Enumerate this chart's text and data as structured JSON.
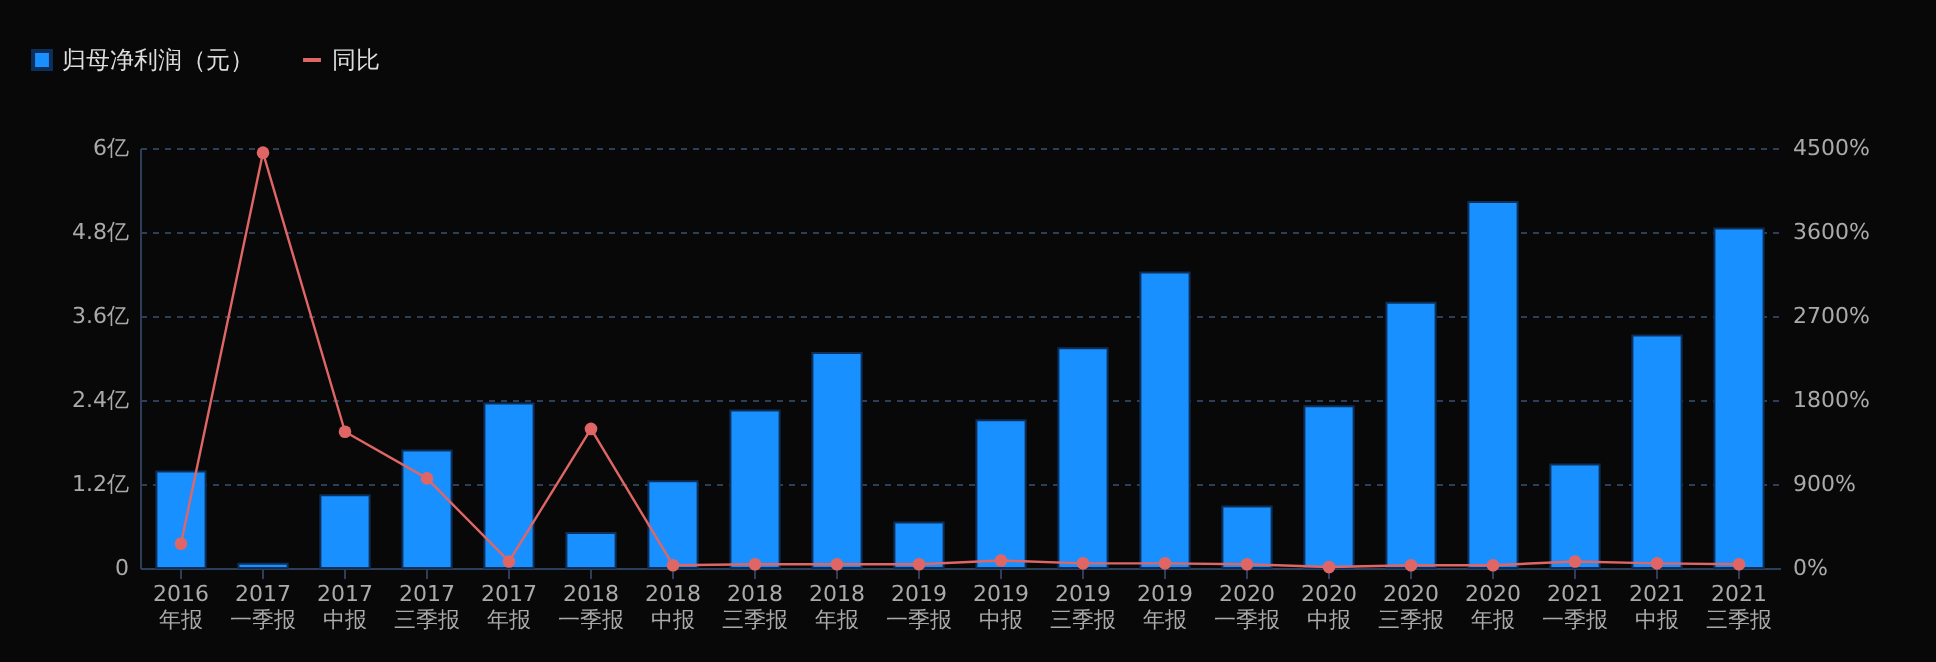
{
  "chart_data": {
    "type": "bar",
    "categories": [
      "2016\n年报",
      "2017\n一季报",
      "2017\n中报",
      "2017\n三季报",
      "2017\n年报",
      "2018\n一季报",
      "2018\n中报",
      "2018\n三季报",
      "2018\n年报",
      "2019\n一季报",
      "2019\n中报",
      "2019\n三季报",
      "2019\n年报",
      "2020\n一季报",
      "2020\n中报",
      "2020\n三季报",
      "2020\n年报",
      "2021\n一季报",
      "2021\n中报",
      "2021\n三季报"
    ],
    "series": [
      {
        "name": "归母净利润（元）",
        "color": "#1890ff",
        "values": [
          1.38,
          0.06,
          1.04,
          1.68,
          2.35,
          0.5,
          1.24,
          2.25,
          3.07,
          0.65,
          2.11,
          3.14,
          4.22,
          0.88,
          2.31,
          3.79,
          5.23,
          1.48,
          3.32,
          4.85
        ]
      },
      {
        "name": "同比",
        "type": "line",
        "axis": "y2",
        "color": "#e06666",
        "values": [
          260,
          4450,
          1460,
          960,
          70,
          1490,
          30,
          40,
          40,
          40,
          80,
          50,
          50,
          40,
          10,
          30,
          30,
          70,
          50,
          40
        ]
      }
    ],
    "ylim": [
      0,
      6
    ],
    "yticks": [
      {
        "value": 0,
        "label": "0"
      },
      {
        "value": 1.2,
        "label": "1.2亿"
      },
      {
        "value": 2.4,
        "label": "2.4亿"
      },
      {
        "value": 3.6,
        "label": "3.6亿"
      },
      {
        "value": 4.8,
        "label": "4.8亿"
      },
      {
        "value": 6,
        "label": "6亿"
      }
    ],
    "y2lim": [
      0,
      4500
    ],
    "y2ticks": [
      {
        "value": 0,
        "label": "0%"
      },
      {
        "value": 900,
        "label": "900%"
      },
      {
        "value": 1800,
        "label": "1800%"
      },
      {
        "value": 2700,
        "label": "2700%"
      },
      {
        "value": 3600,
        "label": "3600%"
      },
      {
        "value": 4500,
        "label": "4500%"
      }
    ],
    "grid": "y",
    "legend": "top left",
    "marker": "circle",
    "line_style": "solid"
  }
}
